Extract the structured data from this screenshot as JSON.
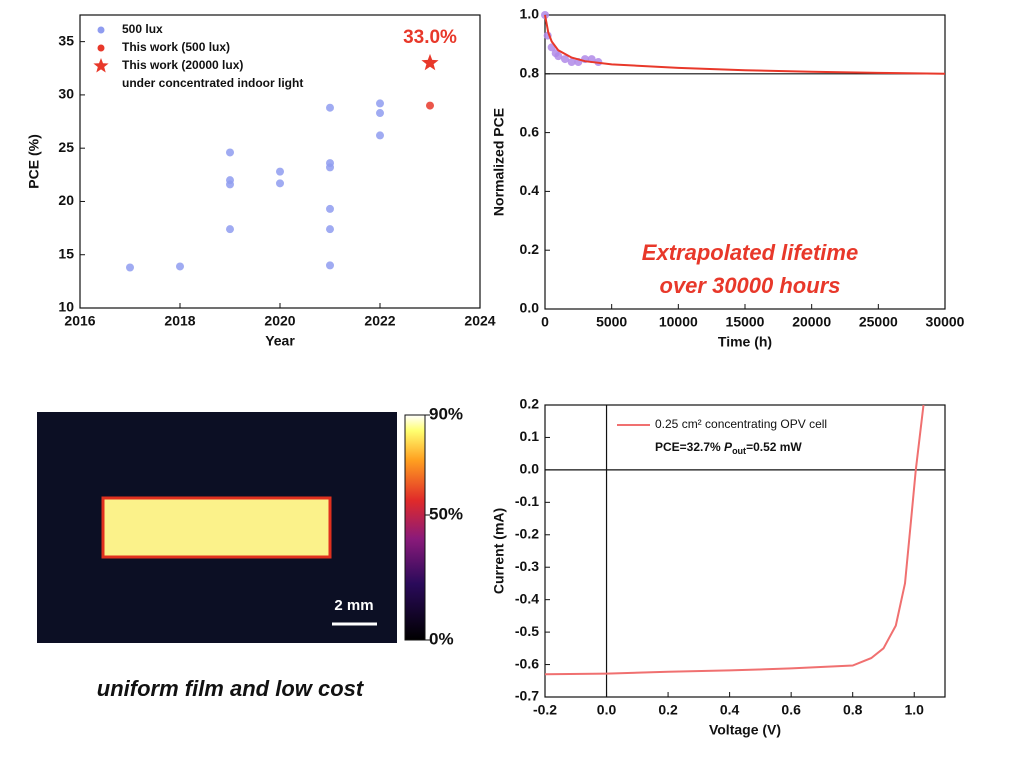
{
  "chart_data": [
    {
      "type": "scatter",
      "xlabel": "Year",
      "ylabel": "PCE (%)",
      "xlim": [
        2016,
        2024
      ],
      "xticks": [
        2016,
        2018,
        2020,
        2022,
        2024
      ],
      "ylim": [
        10,
        37.5
      ],
      "yticks": [
        10,
        15,
        20,
        25,
        30,
        35
      ],
      "series": [
        {
          "name": "500 lux",
          "color": "#8f9cf0",
          "marker": "circle",
          "x": [
            2017,
            2018,
            2019,
            2019,
            2019,
            2019,
            2020,
            2020,
            2021,
            2021,
            2021,
            2021,
            2021,
            2021,
            2022,
            2022,
            2022
          ],
          "values": [
            13.8,
            13.9,
            24.6,
            22.0,
            21.6,
            17.4,
            22.8,
            21.7,
            28.8,
            23.6,
            23.2,
            19.3,
            17.4,
            14.0,
            29.2,
            28.3,
            26.2
          ]
        },
        {
          "name": "This work (500 lux)",
          "color": "#e8382a",
          "marker": "circle",
          "x": [
            2023
          ],
          "values": [
            29.0
          ]
        },
        {
          "name": "This work (20000 lux)",
          "color": "#e8382a",
          "marker": "star",
          "x": [
            2023
          ],
          "values": [
            33.0
          ],
          "value_labels": [
            "33.0%"
          ]
        }
      ],
      "note": "under concentrated indoor light"
    },
    {
      "type": "line",
      "xlabel": "Time (h)",
      "ylabel": "Normalized PCE",
      "xlim": [
        0,
        30000
      ],
      "xticks": [
        0,
        5000,
        10000,
        15000,
        20000,
        25000,
        30000
      ],
      "ylim": [
        0,
        1
      ],
      "yticks": [
        {
          "value": 0,
          "label": "0.0"
        },
        0.2,
        0.4,
        0.6,
        0.8,
        {
          "value": 1,
          "label": "1.0"
        }
      ],
      "hline": 0.8,
      "series": [
        {
          "color": "#b08ae8",
          "marker": "circle",
          "x": [
            0,
            200,
            500,
            800,
            1000,
            1500,
            2000,
            2500,
            3000,
            3500,
            4000
          ],
          "values": [
            1.0,
            0.93,
            0.89,
            0.87,
            0.86,
            0.85,
            0.84,
            0.84,
            0.85,
            0.85,
            0.84
          ]
        },
        {
          "color": "#e8382a",
          "marker": "none",
          "x": [
            0,
            250,
            500,
            1000,
            2000,
            3000,
            5000,
            10000,
            15000,
            20000,
            25000,
            30000
          ],
          "values": [
            1.0,
            0.94,
            0.91,
            0.88,
            0.855,
            0.843,
            0.832,
            0.82,
            0.812,
            0.807,
            0.803,
            0.8
          ]
        }
      ],
      "annotation": [
        "Extrapolated lifetime",
        "over 30000 hours"
      ]
    },
    {
      "type": "image",
      "clim": [
        0,
        90
      ],
      "cticks": [
        {
          "value": 90,
          "label": "90%"
        },
        {
          "value": 50,
          "label": "50%"
        },
        {
          "value": 0,
          "label": "0%"
        }
      ],
      "scale_bar": "2 mm",
      "caption": "uniform film and low cost"
    },
    {
      "type": "line",
      "xlabel": "Voltage (V)",
      "ylabel": "Current (mA)",
      "xlim": [
        -0.2,
        1.1
      ],
      "xticks": [
        -0.2,
        {
          "value": 0,
          "label": "0.0"
        },
        0.2,
        0.4,
        0.6,
        0.8,
        {
          "value": 1,
          "label": "1.0"
        }
      ],
      "ylim": [
        -0.7,
        0.2
      ],
      "yticks": [
        0.2,
        0.1,
        {
          "value": 0,
          "label": "0.0"
        },
        -0.1,
        -0.2,
        -0.3,
        -0.4,
        -0.5,
        -0.6,
        -0.7
      ],
      "hline": 0,
      "vline": 0,
      "series": [
        {
          "name": "0.25 cm² concentrating OPV cell",
          "color": "#f07070",
          "marker": "none",
          "x": [
            -0.2,
            0,
            0.2,
            0.4,
            0.6,
            0.8,
            0.86,
            0.9,
            0.94,
            0.97,
            0.99,
            1.005,
            1.03
          ],
          "values": [
            -0.63,
            -0.628,
            -0.622,
            -0.618,
            -0.612,
            -0.603,
            -0.58,
            -0.55,
            -0.48,
            -0.35,
            -0.15,
            0.0,
            0.2
          ]
        }
      ],
      "annotation": {
        "text": "PCE=32.7% ",
        "symbol": "P",
        "subscript": "out",
        "rest": "=0.52 mW"
      }
    }
  ]
}
